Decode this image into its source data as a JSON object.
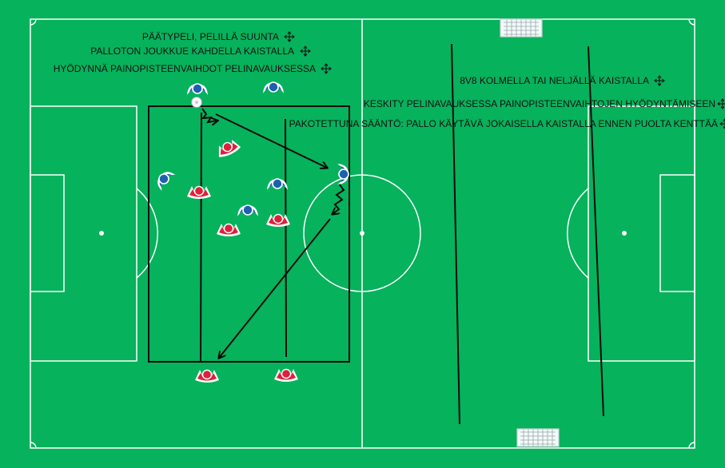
{
  "colors": {
    "pitch": "#06b25c",
    "lines": "#ffffff",
    "blue_team": "#1f5fb0",
    "red_team": "#e0203a",
    "drawing": "#0a0a0a"
  },
  "annotations": {
    "left": [
      "PÄÄTYPELI, PELILLÄ SUUNTA",
      "PALLOTON JOUKKUE KAHDELLA KAISTALLA",
      "HYÖDYNNÄ PAINOPISTEENVAIHDOT PELINAVAUKSESSA"
    ],
    "right": [
      "8V8 KOLMELLA TAI NELJÄLLÄ KAISTALLA",
      "KESKITY PELINAVAUKSESSA PAINOPISTEENVAIHTOJEN HYÖDYNTÄMISEEN",
      "PAKOTETTUNA SÄÄNTÖ: PALLO KÄYTÄVÄ JOKAISELLA KAISTALLA ENNEN PUOLTA KENTTÄÄ"
    ]
  },
  "icons": {
    "move": "move-arrows-icon",
    "goal": "goal-net-icon",
    "ball": "ball-icon",
    "player": "player-marker-icon"
  }
}
